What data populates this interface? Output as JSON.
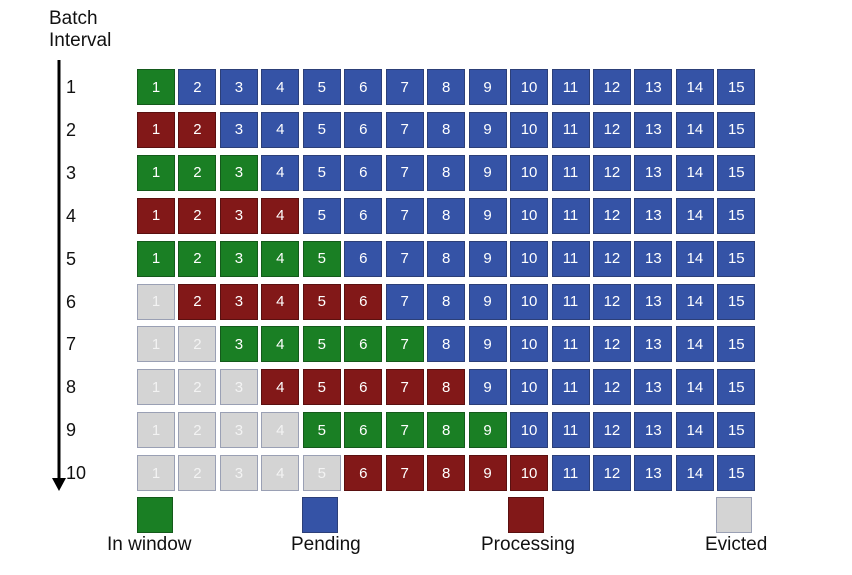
{
  "axis_title": [
    "Batch",
    "Interval"
  ],
  "rows": [
    {
      "label": "1",
      "cells": [
        [
          "1",
          "w"
        ],
        [
          "2",
          "p"
        ],
        [
          "3",
          "p"
        ],
        [
          "4",
          "p"
        ],
        [
          "5",
          "p"
        ],
        [
          "6",
          "p"
        ],
        [
          "7",
          "p"
        ],
        [
          "8",
          "p"
        ],
        [
          "9",
          "p"
        ],
        [
          "10",
          "p"
        ],
        [
          "11",
          "p"
        ],
        [
          "12",
          "p"
        ],
        [
          "13",
          "p"
        ],
        [
          "14",
          "p"
        ],
        [
          "15",
          "p"
        ]
      ]
    },
    {
      "label": "2",
      "cells": [
        [
          "1",
          "r"
        ],
        [
          "2",
          "r"
        ],
        [
          "3",
          "p"
        ],
        [
          "4",
          "p"
        ],
        [
          "5",
          "p"
        ],
        [
          "6",
          "p"
        ],
        [
          "7",
          "p"
        ],
        [
          "8",
          "p"
        ],
        [
          "9",
          "p"
        ],
        [
          "10",
          "p"
        ],
        [
          "11",
          "p"
        ],
        [
          "12",
          "p"
        ],
        [
          "13",
          "p"
        ],
        [
          "14",
          "p"
        ],
        [
          "15",
          "p"
        ]
      ]
    },
    {
      "label": "3",
      "cells": [
        [
          "1",
          "w"
        ],
        [
          "2",
          "w"
        ],
        [
          "3",
          "w"
        ],
        [
          "4",
          "p"
        ],
        [
          "5",
          "p"
        ],
        [
          "6",
          "p"
        ],
        [
          "7",
          "p"
        ],
        [
          "8",
          "p"
        ],
        [
          "9",
          "p"
        ],
        [
          "10",
          "p"
        ],
        [
          "11",
          "p"
        ],
        [
          "12",
          "p"
        ],
        [
          "13",
          "p"
        ],
        [
          "14",
          "p"
        ],
        [
          "15",
          "p"
        ]
      ]
    },
    {
      "label": "4",
      "cells": [
        [
          "1",
          "r"
        ],
        [
          "2",
          "r"
        ],
        [
          "3",
          "r"
        ],
        [
          "4",
          "r"
        ],
        [
          "5",
          "p"
        ],
        [
          "6",
          "p"
        ],
        [
          "7",
          "p"
        ],
        [
          "8",
          "p"
        ],
        [
          "9",
          "p"
        ],
        [
          "10",
          "p"
        ],
        [
          "11",
          "p"
        ],
        [
          "12",
          "p"
        ],
        [
          "13",
          "p"
        ],
        [
          "14",
          "p"
        ],
        [
          "15",
          "p"
        ]
      ]
    },
    {
      "label": "5",
      "cells": [
        [
          "1",
          "w"
        ],
        [
          "2",
          "w"
        ],
        [
          "3",
          "w"
        ],
        [
          "4",
          "w"
        ],
        [
          "5",
          "w"
        ],
        [
          "6",
          "p"
        ],
        [
          "7",
          "p"
        ],
        [
          "8",
          "p"
        ],
        [
          "9",
          "p"
        ],
        [
          "10",
          "p"
        ],
        [
          "11",
          "p"
        ],
        [
          "12",
          "p"
        ],
        [
          "13",
          "p"
        ],
        [
          "14",
          "p"
        ],
        [
          "15",
          "p"
        ]
      ]
    },
    {
      "label": "6",
      "cells": [
        [
          "1",
          "e"
        ],
        [
          "2",
          "r"
        ],
        [
          "3",
          "r"
        ],
        [
          "4",
          "r"
        ],
        [
          "5",
          "r"
        ],
        [
          "6",
          "r"
        ],
        [
          "7",
          "p"
        ],
        [
          "8",
          "p"
        ],
        [
          "9",
          "p"
        ],
        [
          "10",
          "p"
        ],
        [
          "11",
          "p"
        ],
        [
          "12",
          "p"
        ],
        [
          "13",
          "p"
        ],
        [
          "14",
          "p"
        ],
        [
          "15",
          "p"
        ]
      ]
    },
    {
      "label": "7",
      "cells": [
        [
          "1",
          "e"
        ],
        [
          "2",
          "e"
        ],
        [
          "3",
          "w"
        ],
        [
          "4",
          "w"
        ],
        [
          "5",
          "w"
        ],
        [
          "6",
          "w"
        ],
        [
          "7",
          "w"
        ],
        [
          "8",
          "p"
        ],
        [
          "9",
          "p"
        ],
        [
          "10",
          "p"
        ],
        [
          "11",
          "p"
        ],
        [
          "12",
          "p"
        ],
        [
          "13",
          "p"
        ],
        [
          "14",
          "p"
        ],
        [
          "15",
          "p"
        ]
      ]
    },
    {
      "label": "8",
      "cells": [
        [
          "1",
          "e"
        ],
        [
          "2",
          "e"
        ],
        [
          "3",
          "e"
        ],
        [
          "4",
          "r"
        ],
        [
          "5",
          "r"
        ],
        [
          "6",
          "r"
        ],
        [
          "7",
          "r"
        ],
        [
          "8",
          "r"
        ],
        [
          "9",
          "p"
        ],
        [
          "10",
          "p"
        ],
        [
          "11",
          "p"
        ],
        [
          "12",
          "p"
        ],
        [
          "13",
          "p"
        ],
        [
          "14",
          "p"
        ],
        [
          "15",
          "p"
        ]
      ]
    },
    {
      "label": "9",
      "cells": [
        [
          "1",
          "e"
        ],
        [
          "2",
          "e"
        ],
        [
          "3",
          "e"
        ],
        [
          "4",
          "e"
        ],
        [
          "5",
          "w"
        ],
        [
          "6",
          "w"
        ],
        [
          "7",
          "w"
        ],
        [
          "8",
          "w"
        ],
        [
          "9",
          "w"
        ],
        [
          "10",
          "p"
        ],
        [
          "11",
          "p"
        ],
        [
          "12",
          "p"
        ],
        [
          "13",
          "p"
        ],
        [
          "14",
          "p"
        ],
        [
          "15",
          "p"
        ]
      ]
    },
    {
      "label": "10",
      "cells": [
        [
          "1",
          "e"
        ],
        [
          "2",
          "e"
        ],
        [
          "3",
          "e"
        ],
        [
          "4",
          "e"
        ],
        [
          "5",
          "e"
        ],
        [
          "6",
          "r"
        ],
        [
          "7",
          "r"
        ],
        [
          "8",
          "r"
        ],
        [
          "9",
          "r"
        ],
        [
          "10",
          "r"
        ],
        [
          "11",
          "p"
        ],
        [
          "12",
          "p"
        ],
        [
          "13",
          "p"
        ],
        [
          "14",
          "p"
        ],
        [
          "15",
          "p"
        ]
      ]
    }
  ],
  "legend": [
    {
      "label": "In window",
      "state": "w"
    },
    {
      "label": "Pending",
      "state": "p"
    },
    {
      "label": "Processing",
      "state": "r"
    },
    {
      "label": "Evicted",
      "state": "e"
    }
  ],
  "colors": {
    "in_window": "#1a7f24",
    "pending": "#3553a6",
    "processing": "#821818",
    "evicted": "#d4d4d4"
  }
}
